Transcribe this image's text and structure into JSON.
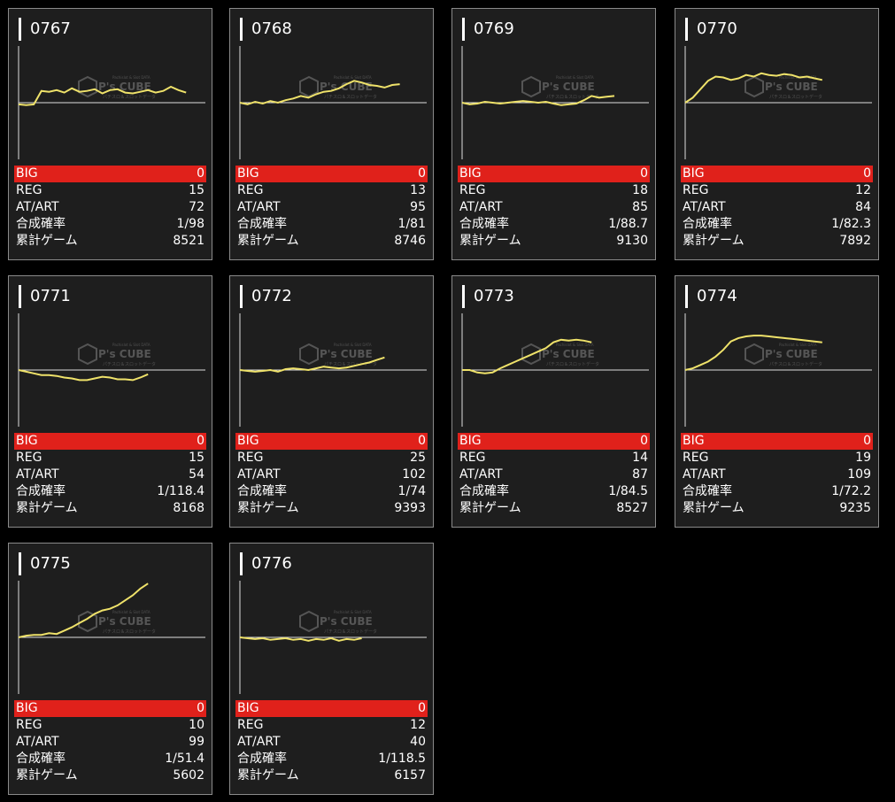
{
  "labels": {
    "big": "BIG",
    "reg": "REG",
    "atart": "AT/ART",
    "combined": "合成確率",
    "games": "累計ゲーム"
  },
  "watermark": {
    "line1": "Pachislot & Slot DATA",
    "logo": "P's CUBE",
    "line2": "パチスロ＆スロットデータ"
  },
  "colors": {
    "line": "#efe26a",
    "big_bg": "#e0211b",
    "card_bg": "#1e1e1e",
    "border": "#8a8a8a"
  },
  "machines": [
    {
      "id": "0767",
      "big": "0",
      "reg": "15",
      "atart": "72",
      "combined": "1/98",
      "games": "8521",
      "trend": [
        -2,
        -3,
        -2,
        14,
        13,
        15,
        12,
        17,
        13,
        14,
        16,
        11,
        15,
        16,
        12,
        11,
        13,
        15,
        12,
        14,
        19,
        15,
        12
      ]
    },
    {
      "id": "0768",
      "big": "0",
      "reg": "13",
      "atart": "95",
      "combined": "1/81",
      "games": "8746",
      "trend": [
        0,
        -2,
        1,
        -1,
        2,
        0,
        3,
        5,
        8,
        6,
        10,
        13,
        14,
        17,
        22,
        26,
        24,
        21,
        20,
        18,
        21,
        22
      ]
    },
    {
      "id": "0769",
      "big": "0",
      "reg": "18",
      "atart": "85",
      "combined": "1/88.7",
      "games": "9130",
      "trend": [
        0,
        -2,
        -1,
        1,
        0,
        -1,
        0,
        1,
        2,
        1,
        0,
        1,
        -1,
        -3,
        -2,
        -1,
        3,
        8,
        6,
        7,
        8
      ]
    },
    {
      "id": "0770",
      "big": "0",
      "reg": "12",
      "atart": "84",
      "combined": "1/82.3",
      "games": "7892",
      "trend": [
        0,
        6,
        16,
        26,
        31,
        30,
        27,
        29,
        33,
        31,
        35,
        33,
        32,
        34,
        33,
        30,
        31,
        29,
        27
      ]
    },
    {
      "id": "0771",
      "big": "0",
      "reg": "15",
      "atart": "54",
      "combined": "1/118.4",
      "games": "8168",
      "trend": [
        0,
        -2,
        -4,
        -6,
        -6,
        -7,
        -9,
        -10,
        -12,
        -12,
        -10,
        -8,
        -9,
        -11,
        -11,
        -12,
        -9,
        -5
      ]
    },
    {
      "id": "0772",
      "big": "0",
      "reg": "25",
      "atart": "102",
      "combined": "1/74",
      "games": "9393",
      "trend": [
        0,
        -1,
        -2,
        -1,
        0,
        -2,
        1,
        2,
        1,
        0,
        2,
        4,
        3,
        2,
        3,
        5,
        7,
        9,
        12,
        15
      ]
    },
    {
      "id": "0773",
      "big": "0",
      "reg": "14",
      "atart": "87",
      "combined": "1/84.5",
      "games": "8527",
      "trend": [
        0,
        0,
        -3,
        -4,
        -3,
        2,
        6,
        10,
        14,
        18,
        22,
        26,
        33,
        36,
        35,
        36,
        35,
        33
      ]
    },
    {
      "id": "0774",
      "big": "0",
      "reg": "19",
      "atart": "109",
      "combined": "1/72.2",
      "games": "9235",
      "trend": [
        0,
        2,
        6,
        10,
        16,
        24,
        34,
        38,
        40,
        41,
        41,
        40,
        39,
        38,
        37,
        36,
        35,
        34,
        33
      ]
    },
    {
      "id": "0775",
      "big": "0",
      "reg": "10",
      "atart": "99",
      "combined": "1/51.4",
      "games": "5602",
      "trend": [
        0,
        2,
        3,
        3,
        5,
        4,
        8,
        12,
        17,
        22,
        28,
        32,
        34,
        38,
        44,
        50,
        58,
        64
      ]
    },
    {
      "id": "0776",
      "big": "0",
      "reg": "12",
      "atart": "40",
      "combined": "1/118.5",
      "games": "6157",
      "trend": [
        0,
        -1,
        -2,
        -1,
        -3,
        -2,
        -1,
        -3,
        -2,
        -4,
        -2,
        -3,
        -1,
        -4,
        -2,
        -3,
        -1
      ]
    }
  ]
}
